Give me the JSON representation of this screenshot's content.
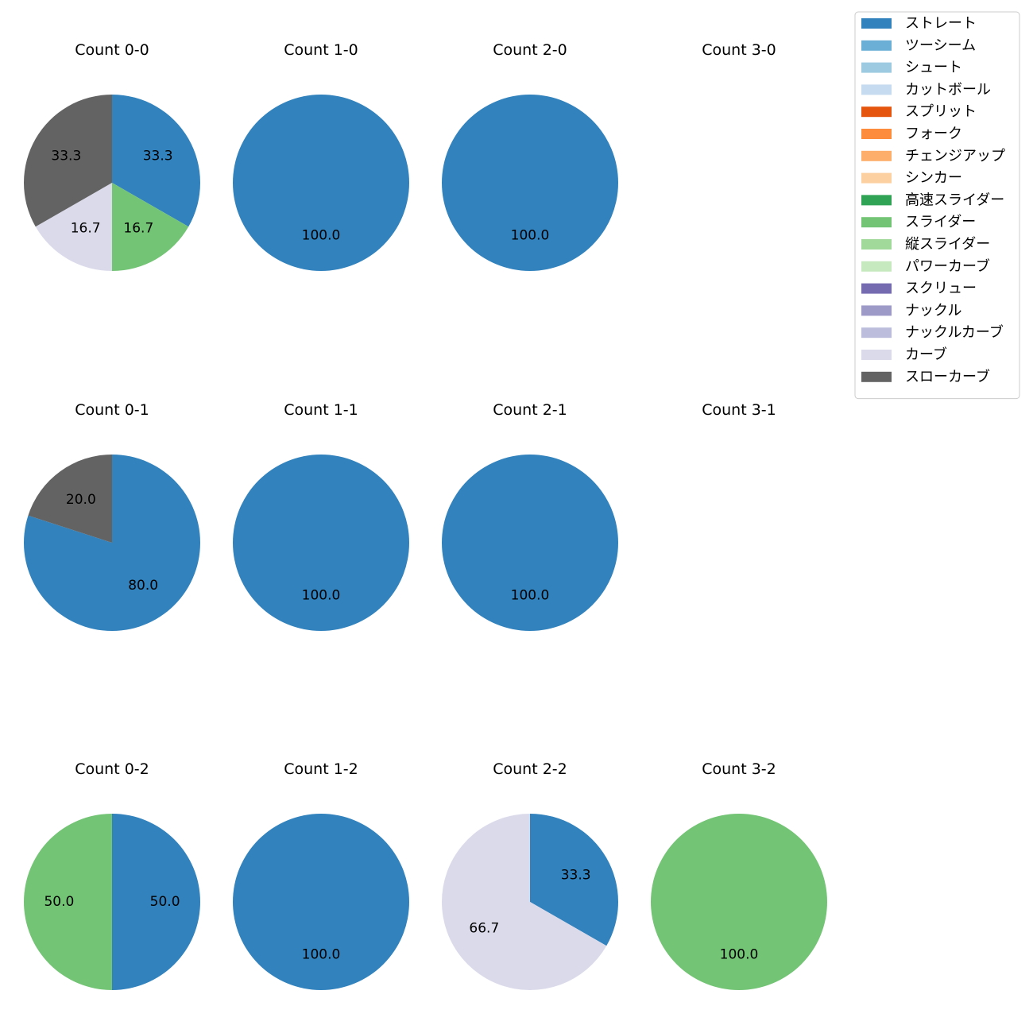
{
  "chart_data": {
    "type": "pie",
    "legend": {
      "placement": "top-right",
      "entries": [
        {
          "name": "ストレート",
          "color": "#3182bd"
        },
        {
          "name": "ツーシーム",
          "color": "#6baed6"
        },
        {
          "name": "シュート",
          "color": "#9ecae1"
        },
        {
          "name": "カットボール",
          "color": "#c6dbef"
        },
        {
          "name": "スプリット",
          "color": "#e6550d"
        },
        {
          "name": "フォーク",
          "color": "#fd8d3c"
        },
        {
          "name": "チェンジアップ",
          "color": "#fdae6b"
        },
        {
          "name": "シンカー",
          "color": "#fdd0a2"
        },
        {
          "name": "高速スライダー",
          "color": "#31a354"
        },
        {
          "name": "スライダー",
          "color": "#74c476"
        },
        {
          "name": "縦スライダー",
          "color": "#a1d99b"
        },
        {
          "name": "パワーカーブ",
          "color": "#c7e9c0"
        },
        {
          "name": "スクリュー",
          "color": "#756bb1"
        },
        {
          "name": "ナックル",
          "color": "#9e9ac8"
        },
        {
          "name": "ナックルカーブ",
          "color": "#bcbddc"
        },
        {
          "name": "カーブ",
          "color": "#dadaeb"
        },
        {
          "name": "スローカーブ",
          "color": "#636363"
        }
      ]
    },
    "panels": [
      {
        "title": "Count 0-0",
        "row": 0,
        "col": 0,
        "slices": [
          {
            "pitch": "ストレート",
            "value": 33.3,
            "label": "33.3"
          },
          {
            "pitch": "スライダー",
            "value": 16.7,
            "label": "16.7"
          },
          {
            "pitch": "カーブ",
            "value": 16.7,
            "label": "16.7"
          },
          {
            "pitch": "スローカーブ",
            "value": 33.3,
            "label": "33.3"
          }
        ]
      },
      {
        "title": "Count 1-0",
        "row": 0,
        "col": 1,
        "slices": [
          {
            "pitch": "ストレート",
            "value": 100.0,
            "label": "100.0"
          }
        ]
      },
      {
        "title": "Count 2-0",
        "row": 0,
        "col": 2,
        "slices": [
          {
            "pitch": "ストレート",
            "value": 100.0,
            "label": "100.0"
          }
        ]
      },
      {
        "title": "Count 3-0",
        "row": 0,
        "col": 3,
        "slices": []
      },
      {
        "title": "Count 0-1",
        "row": 1,
        "col": 0,
        "slices": [
          {
            "pitch": "ストレート",
            "value": 80.0,
            "label": "80.0"
          },
          {
            "pitch": "スローカーブ",
            "value": 20.0,
            "label": "20.0"
          }
        ]
      },
      {
        "title": "Count 1-1",
        "row": 1,
        "col": 1,
        "slices": [
          {
            "pitch": "ストレート",
            "value": 100.0,
            "label": "100.0"
          }
        ]
      },
      {
        "title": "Count 2-1",
        "row": 1,
        "col": 2,
        "slices": [
          {
            "pitch": "ストレート",
            "value": 100.0,
            "label": "100.0"
          }
        ]
      },
      {
        "title": "Count 3-1",
        "row": 1,
        "col": 3,
        "slices": []
      },
      {
        "title": "Count 0-2",
        "row": 2,
        "col": 0,
        "slices": [
          {
            "pitch": "ストレート",
            "value": 50.0,
            "label": "50.0"
          },
          {
            "pitch": "スライダー",
            "value": 50.0,
            "label": "50.0"
          }
        ]
      },
      {
        "title": "Count 1-2",
        "row": 2,
        "col": 1,
        "slices": [
          {
            "pitch": "ストレート",
            "value": 100.0,
            "label": "100.0"
          }
        ]
      },
      {
        "title": "Count 2-2",
        "row": 2,
        "col": 2,
        "slices": [
          {
            "pitch": "ストレート",
            "value": 33.3,
            "label": "33.3"
          },
          {
            "pitch": "カーブ",
            "value": 66.7,
            "label": "66.7"
          }
        ]
      },
      {
        "title": "Count 3-2",
        "row": 2,
        "col": 3,
        "slices": [
          {
            "pitch": "スライダー",
            "value": 100.0,
            "label": "100.0"
          }
        ]
      }
    ]
  }
}
